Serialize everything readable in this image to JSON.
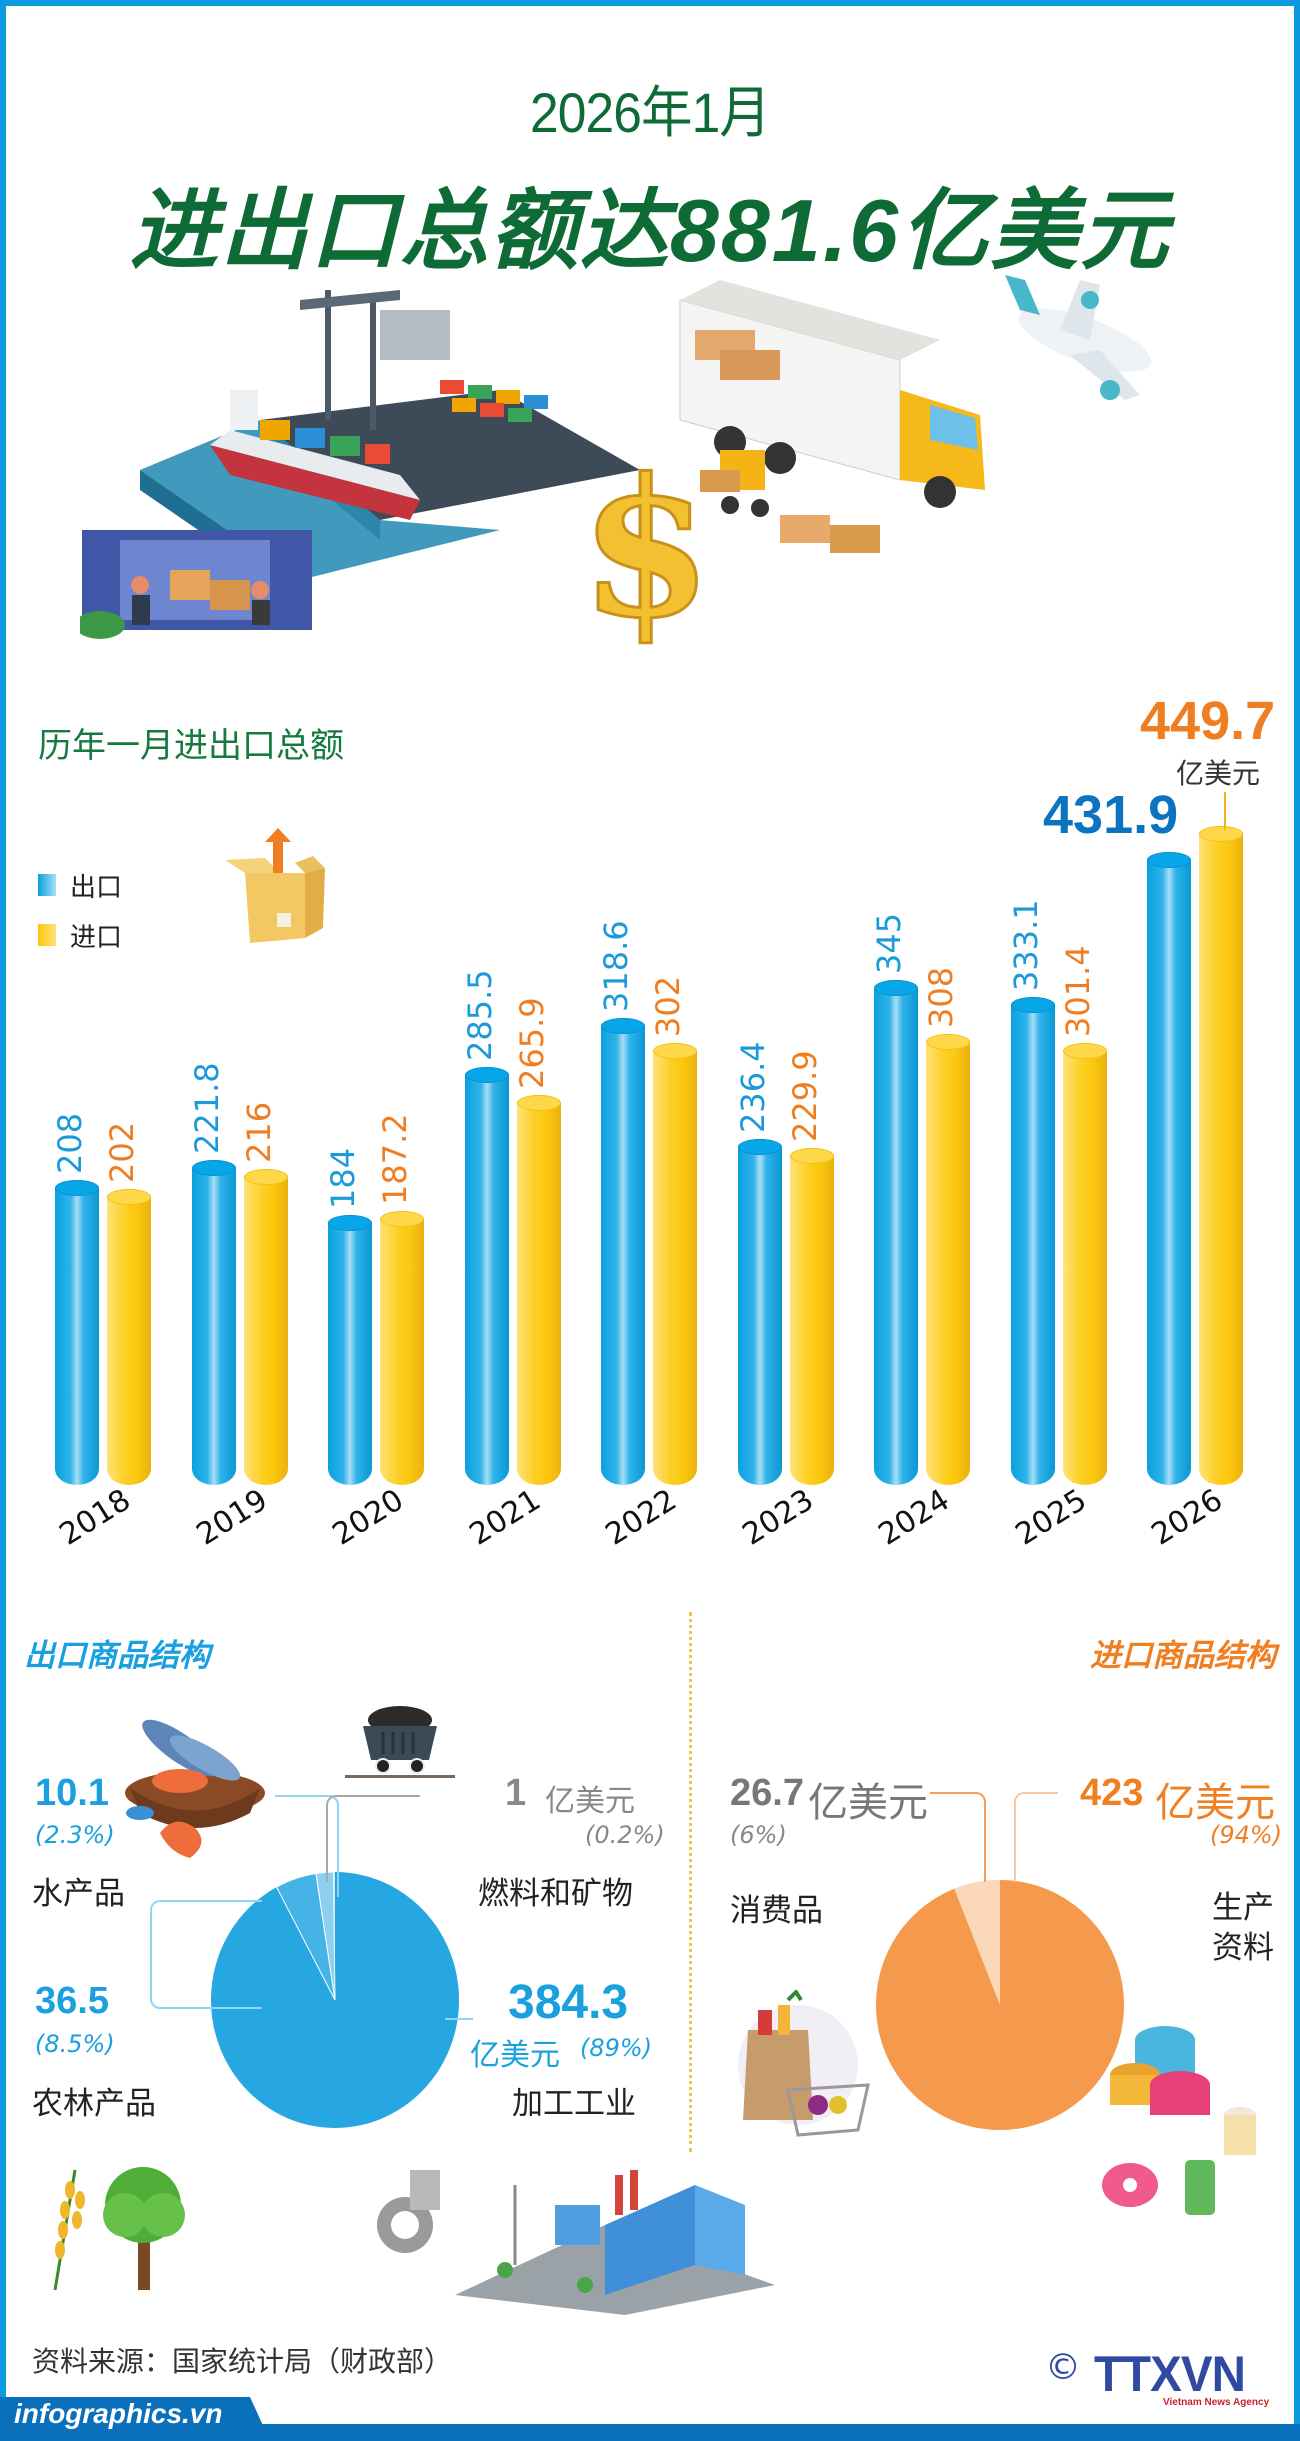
{
  "header": {
    "subtitle": "2026年1月",
    "title": "进出口总额达881.6亿美元"
  },
  "chart_title": "历年一月进出口总额",
  "legend": {
    "export": {
      "label": "出口",
      "color": "#1aa6e4"
    },
    "import": {
      "label": "进口",
      "color": "#fbc60c"
    }
  },
  "highlight": {
    "export_2026": "431.9",
    "import_2026": "449.7",
    "unit": "亿美元"
  },
  "chart_data": [
    {
      "type": "bar",
      "title": "历年一月进出口总额",
      "xlabel": "",
      "ylabel": "亿美元",
      "categories": [
        "2018",
        "2019",
        "2020",
        "2021",
        "2022",
        "2023",
        "2024",
        "2025",
        "2026"
      ],
      "series": [
        {
          "name": "出口",
          "color": "#1aa6e4",
          "values": [
            208,
            221.8,
            184,
            285.5,
            318.6,
            236.4,
            345,
            333.1,
            431.9
          ]
        },
        {
          "name": "进口",
          "color": "#fbc60c",
          "values": [
            202,
            216,
            187.2,
            265.9,
            302,
            229.9,
            308,
            301.4,
            449.7
          ]
        }
      ],
      "value_labels": {
        "出口": [
          "208",
          "221.8",
          "184",
          "285.5",
          "318.6",
          "236.4",
          "345",
          "333.1",
          "431.9"
        ],
        "进口": [
          "202",
          "216",
          "187.2",
          "265.9",
          "302",
          "229.9",
          "308",
          "301.4",
          "449.7"
        ]
      },
      "grid": false,
      "legend_position": "left",
      "ylim": [
        0,
        460
      ]
    },
    {
      "type": "pie",
      "title": "出口商品结构",
      "unit": "亿美元",
      "labels": [
        "加工工业",
        "农林产品",
        "水产品",
        "燃料和矿物"
      ],
      "values": [
        384.3,
        36.5,
        10.1,
        1
      ],
      "percents": [
        89,
        8.5,
        2.3,
        0.2
      ],
      "colors": [
        "#27a7e1",
        "#45b3e6",
        "#8ccfef",
        "#cdeaf8"
      ]
    },
    {
      "type": "pie",
      "title": "进口商品结构",
      "unit": "亿美元",
      "labels": [
        "生产资料",
        "消费品"
      ],
      "values": [
        423,
        26.7
      ],
      "percents": [
        94,
        6
      ],
      "colors": [
        "#f5994d",
        "#fcd8bb"
      ]
    }
  ],
  "export_structure": {
    "title": "出口商品结构",
    "items": [
      {
        "value": "10.1",
        "pct": "(2.3%)",
        "label": "水产品"
      },
      {
        "value": "1",
        "unit": "亿美元",
        "pct": "(0.2%)",
        "label": "燃料和矿物"
      },
      {
        "value": "36.5",
        "pct": "(8.5%)",
        "label": "农林产品"
      },
      {
        "value": "384.3",
        "unit": "亿美元",
        "pct": "(89%)",
        "label": "加工工业"
      }
    ]
  },
  "import_structure": {
    "title": "进口商品结构",
    "items": [
      {
        "value": "26.7",
        "unit": "亿美元",
        "pct": "(6%)",
        "label": "消费品"
      },
      {
        "value": "423",
        "unit": "亿美元",
        "pct": "(94%)",
        "label_line1": "生产",
        "label_line2": "资料"
      }
    ]
  },
  "footer": {
    "source": "资料来源：国家统计局（财政部）",
    "site": "infographics.vn",
    "copyright": "©",
    "agency": "TTXVN",
    "agency_en": "Vietnam News Agency"
  }
}
